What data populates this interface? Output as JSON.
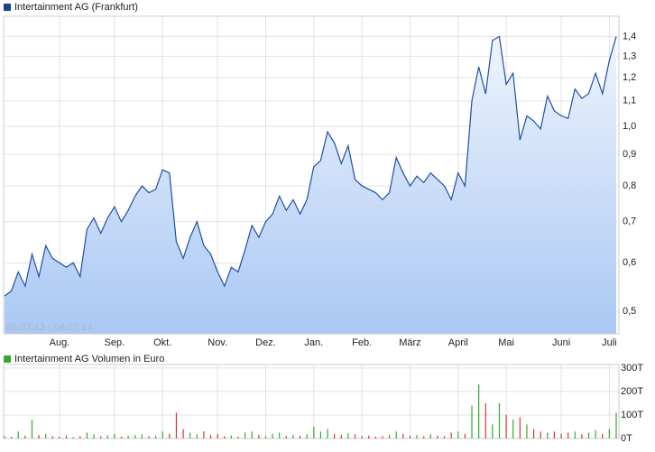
{
  "chart_data": [
    {
      "type": "line",
      "title": "Intertainment AG (Frankfurt)",
      "annotation": "01.07.13 - 04.07.14",
      "categories": [
        null,
        null,
        null,
        null,
        null,
        null,
        null,
        null,
        "Aug.",
        null,
        null,
        null,
        null,
        null,
        null,
        null,
        "Sep.",
        null,
        null,
        null,
        null,
        null,
        null,
        "Okt.",
        null,
        null,
        null,
        null,
        null,
        null,
        null,
        "Nov.",
        null,
        null,
        null,
        null,
        null,
        null,
        "Dez.",
        null,
        null,
        null,
        null,
        null,
        null,
        "Jan.",
        null,
        null,
        null,
        null,
        null,
        null,
        "Feb.",
        null,
        null,
        null,
        null,
        null,
        null,
        "März",
        null,
        null,
        null,
        null,
        null,
        null,
        "April",
        null,
        null,
        null,
        null,
        null,
        null,
        "Mai",
        null,
        null,
        null,
        null,
        null,
        null,
        null,
        "Juni",
        null,
        null,
        null,
        null,
        null,
        null,
        "Juli",
        null
      ],
      "values": [
        0.53,
        0.54,
        0.58,
        0.55,
        0.62,
        0.57,
        0.64,
        0.61,
        0.6,
        0.59,
        0.6,
        0.57,
        0.68,
        0.71,
        0.67,
        0.71,
        0.74,
        0.7,
        0.73,
        0.77,
        0.8,
        0.78,
        0.79,
        0.85,
        0.84,
        0.65,
        0.61,
        0.66,
        0.7,
        0.64,
        0.62,
        0.58,
        0.55,
        0.59,
        0.58,
        0.63,
        0.69,
        0.66,
        0.7,
        0.72,
        0.77,
        0.73,
        0.76,
        0.72,
        0.76,
        0.86,
        0.88,
        0.98,
        0.94,
        0.87,
        0.93,
        0.82,
        0.8,
        0.79,
        0.78,
        0.76,
        0.78,
        0.89,
        0.84,
        0.8,
        0.83,
        0.81,
        0.84,
        0.82,
        0.8,
        0.76,
        0.84,
        0.8,
        1.1,
        1.25,
        1.13,
        1.38,
        1.4,
        1.17,
        1.22,
        0.95,
        1.04,
        1.02,
        0.99,
        1.12,
        1.06,
        1.04,
        1.03,
        1.15,
        1.11,
        1.13,
        1.22,
        1.13,
        1.28,
        1.4
      ],
      "color": "#1f4fa8",
      "log_scale": true,
      "grid": true,
      "ylim": [
        0.46,
        1.51
      ],
      "yticks": [
        {
          "value": 0.5,
          "label": "0,5"
        },
        {
          "value": 0.6,
          "label": "0,6"
        },
        {
          "value": 0.7,
          "label": "0,7"
        },
        {
          "value": 0.8,
          "label": "0,8"
        },
        {
          "value": 0.9,
          "label": "0,9"
        },
        {
          "value": 1.0,
          "label": "1,0"
        },
        {
          "value": 1.1,
          "label": "1,1"
        },
        {
          "value": 1.2,
          "label": "1,2"
        },
        {
          "value": 1.3,
          "label": "1,3"
        },
        {
          "value": 1.4,
          "label": "1,4"
        }
      ]
    },
    {
      "type": "bar",
      "title": "Intertainment AG Volumen in Euro",
      "values": [
        10,
        8,
        30,
        12,
        80,
        15,
        20,
        10,
        8,
        12,
        6,
        10,
        25,
        18,
        10,
        14,
        20,
        8,
        12,
        15,
        18,
        10,
        12,
        30,
        20,
        110,
        40,
        25,
        18,
        30,
        15,
        20,
        10,
        12,
        8,
        25,
        30,
        15,
        12,
        20,
        25,
        10,
        15,
        12,
        18,
        50,
        30,
        40,
        20,
        15,
        22,
        18,
        10,
        12,
        8,
        10,
        15,
        30,
        20,
        12,
        15,
        10,
        18,
        12,
        10,
        25,
        30,
        20,
        140,
        230,
        150,
        60,
        150,
        100,
        80,
        90,
        60,
        40,
        30,
        25,
        30,
        20,
        25,
        30,
        18,
        25,
        35,
        20,
        40,
        110
      ],
      "up_color": "#33aa33",
      "down_color": "#dd3333",
      "grid": true,
      "ylim": [
        0,
        315
      ],
      "yticks": [
        {
          "value": 0,
          "label": "0T"
        },
        {
          "value": 100,
          "label": "100T"
        },
        {
          "value": 200,
          "label": "200T"
        },
        {
          "value": 300,
          "label": "300T"
        }
      ]
    }
  ]
}
